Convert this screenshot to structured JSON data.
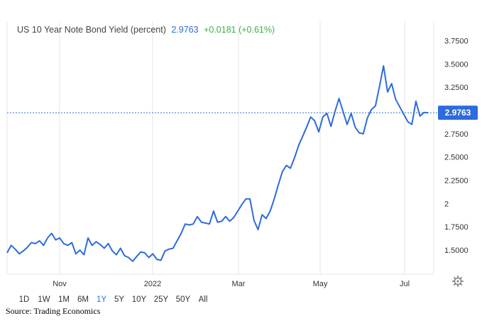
{
  "header": {
    "series_label": "US 10 Year Note Bond Yield (percent)",
    "last_value": "2.9763",
    "change": "+0.0181 (+0.61%)"
  },
  "colors": {
    "line": "#2d6bde",
    "change_positive": "#3cb043",
    "label_box": "#2d6bde",
    "grid": "#e6e6e6",
    "text": "#444444",
    "axis_text": "#333333"
  },
  "range_buttons": [
    {
      "label": "1D",
      "active": false
    },
    {
      "label": "1W",
      "active": false
    },
    {
      "label": "1M",
      "active": false
    },
    {
      "label": "6M",
      "active": false
    },
    {
      "label": "1Y",
      "active": true
    },
    {
      "label": "5Y",
      "active": false
    },
    {
      "label": "10Y",
      "active": false
    },
    {
      "label": "25Y",
      "active": false
    },
    {
      "label": "50Y",
      "active": false
    },
    {
      "label": "All",
      "active": false
    }
  ],
  "icons": {
    "settings": "gear-icon"
  },
  "source_note": "Source: Trading Economics",
  "chart_data": {
    "type": "line",
    "title": "US 10 Year Note Bond Yield (percent)",
    "xlabel": "",
    "ylabel": "",
    "x_tick_labels": [
      "Nov",
      "2022",
      "Mar",
      "May",
      "Jul"
    ],
    "y_tick_labels": [
      "1.5000",
      "1.7500",
      "2",
      "2.2500",
      "2.5000",
      "2.7500",
      "3.2500",
      "3.5000",
      "3.7500"
    ],
    "ylim": [
      1.32,
      3.85
    ],
    "y_axis_side": "right",
    "grid": "vertical",
    "last_value_line": 2.9763,
    "series": [
      {
        "values": [
          1.47,
          1.55,
          1.51,
          1.46,
          1.49,
          1.53,
          1.58,
          1.57,
          1.6,
          1.55,
          1.63,
          1.68,
          1.61,
          1.63,
          1.57,
          1.55,
          1.58,
          1.46,
          1.5,
          1.45,
          1.63,
          1.55,
          1.59,
          1.56,
          1.52,
          1.57,
          1.49,
          1.45,
          1.52,
          1.44,
          1.42,
          1.38,
          1.43,
          1.48,
          1.47,
          1.42,
          1.46,
          1.4,
          1.39,
          1.49,
          1.51,
          1.52,
          1.6,
          1.68,
          1.78,
          1.77,
          1.78,
          1.86,
          1.8,
          1.79,
          1.78,
          1.92,
          1.8,
          1.81,
          1.86,
          1.81,
          1.85,
          1.92,
          1.99,
          2.05,
          2.05,
          1.82,
          1.72,
          1.88,
          1.84,
          1.92,
          2.05,
          2.2,
          2.34,
          2.41,
          2.38,
          2.49,
          2.62,
          2.72,
          2.82,
          2.93,
          2.89,
          2.77,
          2.93,
          2.97,
          2.83,
          2.99,
          3.13,
          2.99,
          2.85,
          2.97,
          2.82,
          2.76,
          2.75,
          2.92,
          3.01,
          3.05,
          3.26,
          3.48,
          3.2,
          3.29,
          3.12,
          3.04,
          2.96,
          2.88,
          2.85,
          3.1,
          2.94,
          2.98,
          2.9763
        ]
      }
    ]
  }
}
